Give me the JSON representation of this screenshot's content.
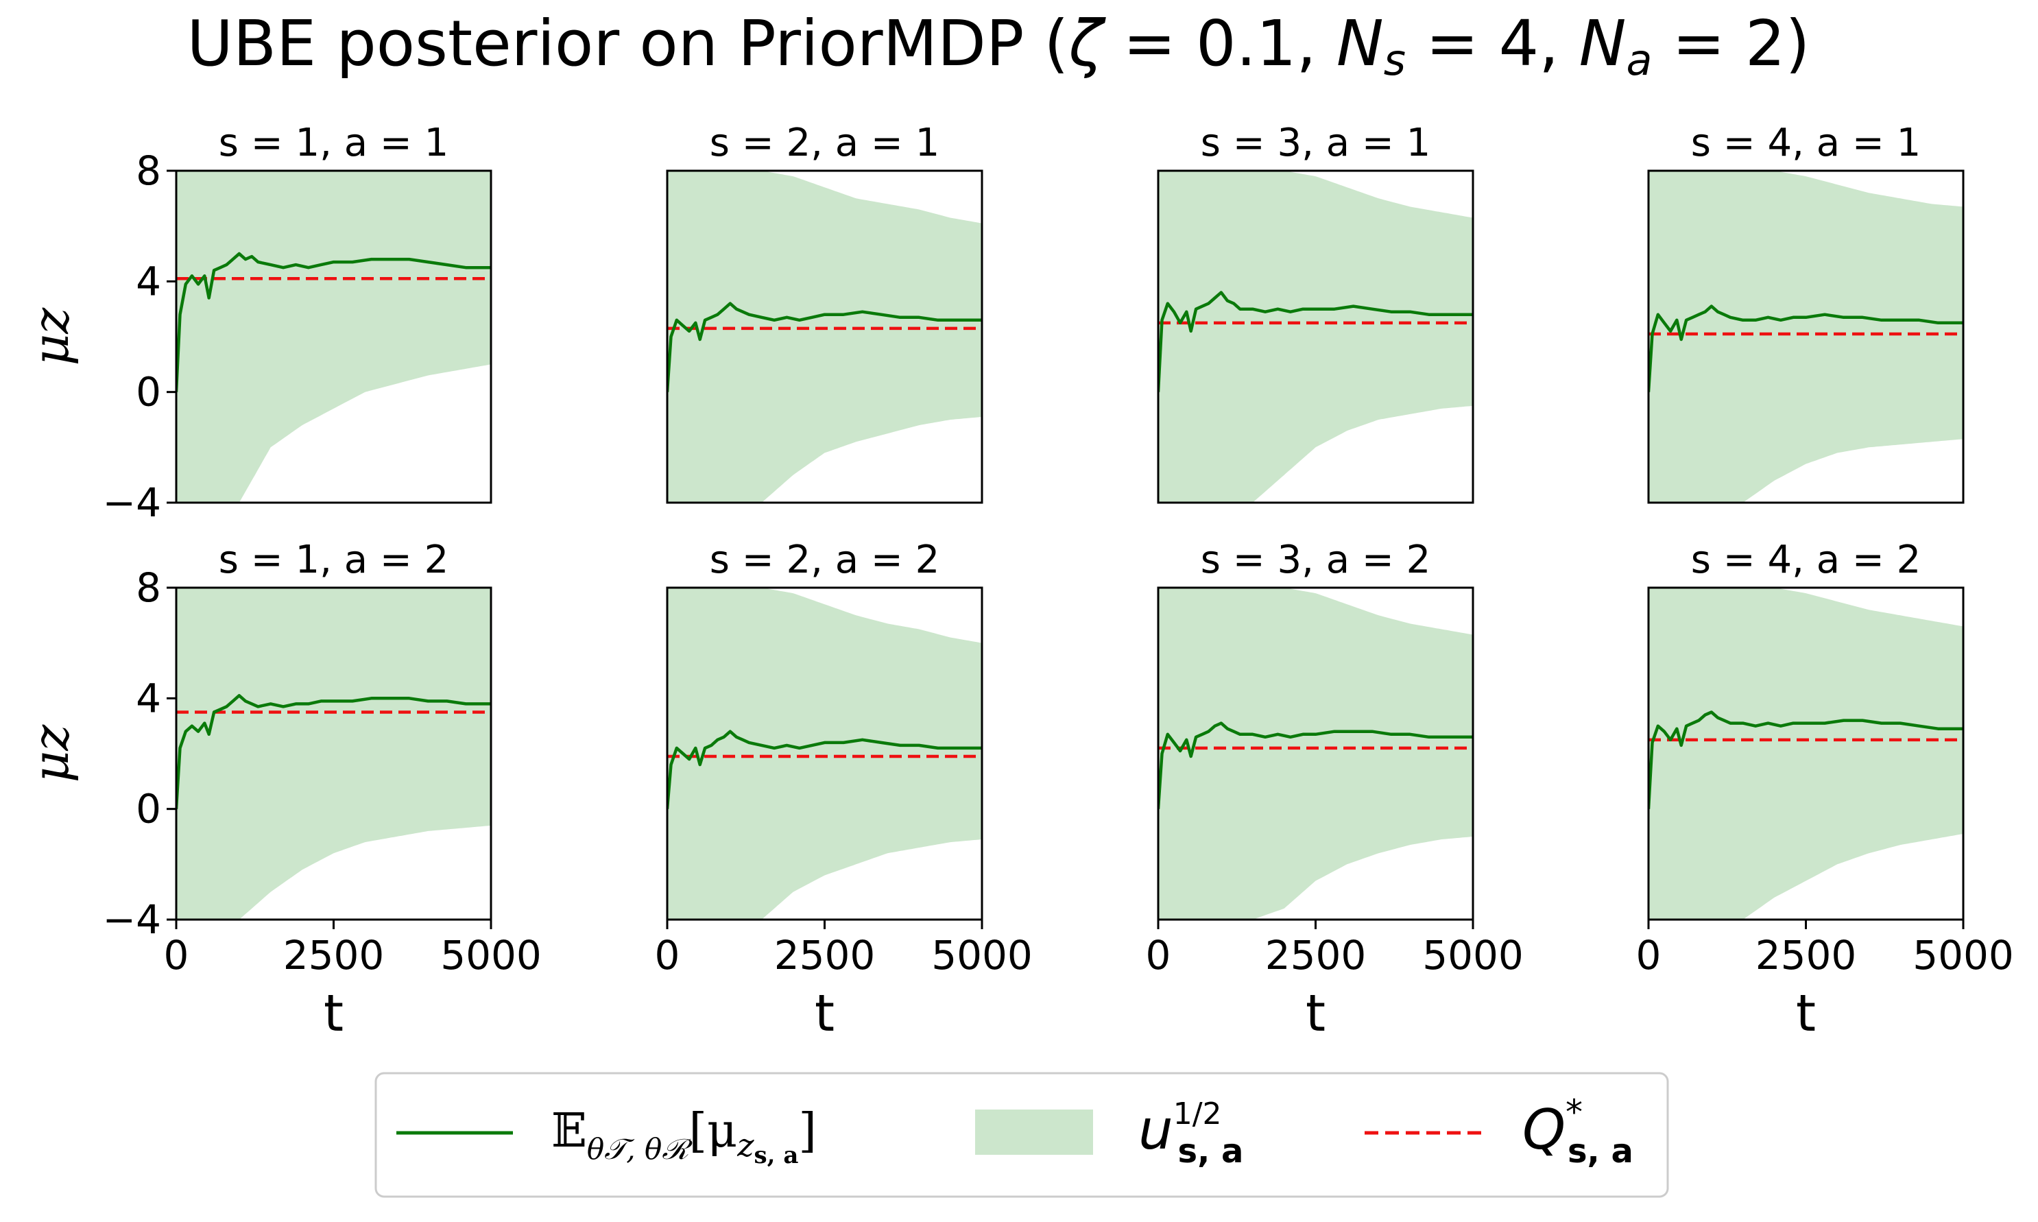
{
  "figure": {
    "title_prefix": "UBE posterior on PriorMDP (",
    "zeta_symbol": "ζ",
    "zeta_text": " = 0.1, ",
    "ns_symbol": "N",
    "ns_sub": "s",
    "ns_text": " = 4, ",
    "na_symbol": "N",
    "na_sub": "a",
    "na_text": " = 2)",
    "title_suffix": ""
  },
  "legend": {
    "mean_label_E": "𝔼",
    "mean_label_sub": "θ𝒯, θℛ",
    "mean_label_rest": "[μ",
    "mean_label_z": "z",
    "mean_label_zsub": "s, a",
    "mean_label_close": "]",
    "band_label_u": "u",
    "band_label_sup": "1/2",
    "band_label_sub": "s, a",
    "ref_label_Q": "Q",
    "ref_label_sup": "*",
    "ref_label_sub": "s, a"
  },
  "colors": {
    "mean": "#0a7a0a",
    "band": "#cce6cc",
    "ref": "#ee1111"
  },
  "chart_data": [
    {
      "type": "line",
      "title": "s = 1, a = 1",
      "ylabel": "μz",
      "xlabel": "",
      "xlim": [
        0,
        5000
      ],
      "ylim": [
        -4,
        8
      ],
      "yticks": [
        "8",
        "4",
        "0",
        "−4"
      ],
      "xticks": [],
      "q_star": 4.1,
      "mean_x": [
        0,
        60,
        150,
        250,
        350,
        450,
        520,
        600,
        700,
        800,
        900,
        1000,
        1100,
        1200,
        1300,
        1500,
        1700,
        1900,
        2100,
        2300,
        2500,
        2800,
        3100,
        3400,
        3700,
        4000,
        4300,
        4600,
        5000
      ],
      "mean_y": [
        0,
        2.8,
        3.9,
        4.2,
        3.9,
        4.2,
        3.4,
        4.4,
        4.5,
        4.6,
        4.8,
        5.0,
        4.8,
        4.9,
        4.7,
        4.6,
        4.5,
        4.6,
        4.5,
        4.6,
        4.7,
        4.7,
        4.8,
        4.8,
        4.8,
        4.7,
        4.6,
        4.5,
        4.5
      ],
      "band_upper": [
        8,
        8,
        8,
        8,
        8,
        8,
        8
      ],
      "band_lower_x": [
        0,
        600,
        1000,
        1500,
        2000,
        2500,
        3000,
        3500,
        4000,
        4500,
        5000
      ],
      "band_lower": [
        -4,
        -4,
        -4,
        -2.0,
        -1.2,
        -0.6,
        0.0,
        0.3,
        0.6,
        0.8,
        1.0
      ]
    },
    {
      "type": "line",
      "title": "s = 2, a = 1",
      "ylabel": "",
      "xlabel": "",
      "xlim": [
        0,
        5000
      ],
      "ylim": [
        -4,
        8
      ],
      "yticks": [],
      "xticks": [],
      "q_star": 2.3,
      "mean_x": [
        0,
        60,
        150,
        250,
        350,
        450,
        520,
        600,
        700,
        800,
        900,
        1000,
        1100,
        1200,
        1300,
        1500,
        1700,
        1900,
        2100,
        2300,
        2500,
        2800,
        3100,
        3400,
        3700,
        4000,
        4300,
        4600,
        5000
      ],
      "mean_y": [
        0,
        2.0,
        2.6,
        2.4,
        2.2,
        2.5,
        1.9,
        2.6,
        2.7,
        2.8,
        3.0,
        3.2,
        3.0,
        2.9,
        2.8,
        2.7,
        2.6,
        2.7,
        2.6,
        2.7,
        2.8,
        2.8,
        2.9,
        2.8,
        2.7,
        2.7,
        2.6,
        2.6,
        2.6
      ],
      "band_upper_x": [
        0,
        1000,
        1500,
        2000,
        2500,
        3000,
        3500,
        4000,
        4500,
        5000
      ],
      "band_upper": [
        8,
        8,
        8,
        7.8,
        7.4,
        7.0,
        6.8,
        6.6,
        6.3,
        6.1
      ],
      "band_lower_x": [
        0,
        1000,
        1500,
        2000,
        2500,
        3000,
        3500,
        4000,
        4500,
        5000
      ],
      "band_lower": [
        -4,
        -4,
        -4,
        -3.0,
        -2.2,
        -1.8,
        -1.5,
        -1.2,
        -1.0,
        -0.9
      ]
    },
    {
      "type": "line",
      "title": "s = 3, a = 1",
      "ylabel": "",
      "xlabel": "",
      "xlim": [
        0,
        5000
      ],
      "ylim": [
        -4,
        8
      ],
      "yticks": [],
      "xticks": [],
      "q_star": 2.5,
      "mean_x": [
        0,
        60,
        150,
        250,
        350,
        450,
        520,
        600,
        700,
        800,
        900,
        1000,
        1100,
        1200,
        1300,
        1500,
        1700,
        1900,
        2100,
        2300,
        2500,
        2800,
        3100,
        3400,
        3700,
        4000,
        4300,
        4600,
        5000
      ],
      "mean_y": [
        0,
        2.6,
        3.2,
        2.9,
        2.5,
        2.9,
        2.2,
        3.0,
        3.1,
        3.2,
        3.4,
        3.6,
        3.3,
        3.2,
        3.0,
        3.0,
        2.9,
        3.0,
        2.9,
        3.0,
        3.0,
        3.0,
        3.1,
        3.0,
        2.9,
        2.9,
        2.8,
        2.8,
        2.8
      ],
      "band_upper_x": [
        0,
        1000,
        1500,
        2000,
        2500,
        3000,
        3500,
        4000,
        4500,
        5000
      ],
      "band_upper": [
        8,
        8,
        8,
        8,
        7.8,
        7.4,
        7.0,
        6.7,
        6.5,
        6.3
      ],
      "band_lower_x": [
        0,
        1000,
        1500,
        2000,
        2500,
        3000,
        3500,
        4000,
        4500,
        5000
      ],
      "band_lower": [
        -4,
        -4,
        -4,
        -3.0,
        -2.0,
        -1.4,
        -1.0,
        -0.8,
        -0.6,
        -0.5
      ]
    },
    {
      "type": "line",
      "title": "s = 4, a = 1",
      "ylabel": "",
      "xlabel": "",
      "xlim": [
        0,
        5000
      ],
      "ylim": [
        -4,
        8
      ],
      "yticks": [],
      "xticks": [],
      "q_star": 2.1,
      "mean_x": [
        0,
        60,
        150,
        250,
        350,
        450,
        520,
        600,
        700,
        800,
        900,
        1000,
        1100,
        1200,
        1300,
        1500,
        1700,
        1900,
        2100,
        2300,
        2500,
        2800,
        3100,
        3400,
        3700,
        4000,
        4300,
        4600,
        5000
      ],
      "mean_y": [
        0,
        2.1,
        2.8,
        2.5,
        2.2,
        2.6,
        1.9,
        2.6,
        2.7,
        2.8,
        2.9,
        3.1,
        2.9,
        2.8,
        2.7,
        2.6,
        2.6,
        2.7,
        2.6,
        2.7,
        2.7,
        2.8,
        2.7,
        2.7,
        2.6,
        2.6,
        2.6,
        2.5,
        2.5
      ],
      "band_upper_x": [
        0,
        1000,
        1500,
        2000,
        2500,
        3000,
        3500,
        4000,
        4500,
        5000
      ],
      "band_upper": [
        8,
        8,
        8,
        8,
        7.8,
        7.5,
        7.2,
        7.0,
        6.8,
        6.7
      ],
      "band_lower_x": [
        0,
        1000,
        1500,
        2000,
        2500,
        3000,
        3500,
        4000,
        4500,
        5000
      ],
      "band_lower": [
        -4,
        -4,
        -4,
        -3.2,
        -2.6,
        -2.2,
        -2.0,
        -1.9,
        -1.8,
        -1.7
      ]
    },
    {
      "type": "line",
      "title": "s = 1, a = 2",
      "ylabel": "μz",
      "xlabel": "t",
      "xlim": [
        0,
        5000
      ],
      "ylim": [
        -4,
        8
      ],
      "yticks": [
        "8",
        "4",
        "0",
        "−4"
      ],
      "xticks": [
        "0",
        "2500",
        "5000"
      ],
      "q_star": 3.5,
      "mean_x": [
        0,
        60,
        150,
        250,
        350,
        450,
        520,
        600,
        700,
        800,
        900,
        1000,
        1100,
        1200,
        1300,
        1500,
        1700,
        1900,
        2100,
        2300,
        2500,
        2800,
        3100,
        3400,
        3700,
        4000,
        4300,
        4600,
        5000
      ],
      "mean_y": [
        0,
        2.2,
        2.8,
        3.0,
        2.8,
        3.1,
        2.7,
        3.5,
        3.6,
        3.7,
        3.9,
        4.1,
        3.9,
        3.8,
        3.7,
        3.8,
        3.7,
        3.8,
        3.8,
        3.9,
        3.9,
        3.9,
        4.0,
        4.0,
        4.0,
        3.9,
        3.9,
        3.8,
        3.8
      ],
      "band_upper": [
        8,
        8,
        8,
        8,
        8,
        8,
        8
      ],
      "band_lower_x": [
        0,
        600,
        1000,
        1500,
        2000,
        2500,
        3000,
        3500,
        4000,
        4500,
        5000
      ],
      "band_lower": [
        -4,
        -4,
        -4,
        -3.0,
        -2.2,
        -1.6,
        -1.2,
        -1.0,
        -0.8,
        -0.7,
        -0.6
      ]
    },
    {
      "type": "line",
      "title": "s = 2, a = 2",
      "ylabel": "",
      "xlabel": "t",
      "xlim": [
        0,
        5000
      ],
      "ylim": [
        -4,
        8
      ],
      "yticks": [],
      "xticks": [
        "0",
        "2500",
        "5000"
      ],
      "q_star": 1.9,
      "mean_x": [
        0,
        60,
        150,
        250,
        350,
        450,
        520,
        600,
        700,
        800,
        900,
        1000,
        1100,
        1200,
        1300,
        1500,
        1700,
        1900,
        2100,
        2300,
        2500,
        2800,
        3100,
        3400,
        3700,
        4000,
        4300,
        4600,
        5000
      ],
      "mean_y": [
        0,
        1.6,
        2.2,
        2.0,
        1.8,
        2.2,
        1.6,
        2.2,
        2.3,
        2.5,
        2.6,
        2.8,
        2.6,
        2.5,
        2.4,
        2.3,
        2.2,
        2.3,
        2.2,
        2.3,
        2.4,
        2.4,
        2.5,
        2.4,
        2.3,
        2.3,
        2.2,
        2.2,
        2.2
      ],
      "band_upper_x": [
        0,
        1000,
        1500,
        2000,
        2500,
        3000,
        3500,
        4000,
        4500,
        5000
      ],
      "band_upper": [
        8,
        8,
        8,
        7.8,
        7.4,
        7.0,
        6.7,
        6.5,
        6.2,
        6.0
      ],
      "band_lower_x": [
        0,
        1000,
        1500,
        2000,
        2500,
        3000,
        3500,
        4000,
        4500,
        5000
      ],
      "band_lower": [
        -4,
        -4,
        -4,
        -3.0,
        -2.4,
        -2.0,
        -1.6,
        -1.4,
        -1.2,
        -1.1
      ]
    },
    {
      "type": "line",
      "title": "s = 3, a = 2",
      "ylabel": "",
      "xlabel": "t",
      "xlim": [
        0,
        5000
      ],
      "ylim": [
        -4,
        8
      ],
      "yticks": [],
      "xticks": [
        "0",
        "2500",
        "5000"
      ],
      "q_star": 2.2,
      "mean_x": [
        0,
        60,
        150,
        250,
        350,
        450,
        520,
        600,
        700,
        800,
        900,
        1000,
        1100,
        1200,
        1300,
        1500,
        1700,
        1900,
        2100,
        2300,
        2500,
        2800,
        3100,
        3400,
        3700,
        4000,
        4300,
        4600,
        5000
      ],
      "mean_y": [
        0,
        2.0,
        2.7,
        2.4,
        2.1,
        2.5,
        1.9,
        2.6,
        2.7,
        2.8,
        3.0,
        3.1,
        2.9,
        2.8,
        2.7,
        2.7,
        2.6,
        2.7,
        2.6,
        2.7,
        2.7,
        2.8,
        2.8,
        2.8,
        2.7,
        2.7,
        2.6,
        2.6,
        2.6
      ],
      "band_upper_x": [
        0,
        1000,
        1500,
        2000,
        2500,
        3000,
        3500,
        4000,
        4500,
        5000
      ],
      "band_upper": [
        8,
        8,
        8,
        8,
        7.8,
        7.4,
        7.0,
        6.7,
        6.5,
        6.3
      ],
      "band_lower_x": [
        0,
        1000,
        1500,
        2000,
        2500,
        3000,
        3500,
        4000,
        4500,
        5000
      ],
      "band_lower": [
        -4,
        -4,
        -4,
        -3.6,
        -2.6,
        -2.0,
        -1.6,
        -1.3,
        -1.1,
        -1.0
      ]
    },
    {
      "type": "line",
      "title": "s = 4, a = 2",
      "ylabel": "",
      "xlabel": "t",
      "xlim": [
        0,
        5000
      ],
      "ylim": [
        -4,
        8
      ],
      "yticks": [],
      "xticks": [
        "0",
        "2500",
        "5000"
      ],
      "q_star": 2.5,
      "mean_x": [
        0,
        60,
        150,
        250,
        350,
        450,
        520,
        600,
        700,
        800,
        900,
        1000,
        1100,
        1200,
        1300,
        1500,
        1700,
        1900,
        2100,
        2300,
        2500,
        2800,
        3100,
        3400,
        3700,
        4000,
        4300,
        4600,
        5000
      ],
      "mean_y": [
        0,
        2.4,
        3.0,
        2.8,
        2.5,
        2.9,
        2.3,
        3.0,
        3.1,
        3.2,
        3.4,
        3.5,
        3.3,
        3.2,
        3.1,
        3.1,
        3.0,
        3.1,
        3.0,
        3.1,
        3.1,
        3.1,
        3.2,
        3.2,
        3.1,
        3.1,
        3.0,
        2.9,
        2.9
      ],
      "band_upper_x": [
        0,
        1000,
        1500,
        2000,
        2500,
        3000,
        3500,
        4000,
        4500,
        5000
      ],
      "band_upper": [
        8,
        8,
        8,
        8,
        7.8,
        7.5,
        7.2,
        7.0,
        6.8,
        6.6
      ],
      "band_lower_x": [
        0,
        1000,
        1500,
        2000,
        2500,
        3000,
        3500,
        4000,
        4500,
        5000
      ],
      "band_lower": [
        -4,
        -4,
        -4,
        -3.2,
        -2.6,
        -2.0,
        -1.6,
        -1.3,
        -1.1,
        -0.9
      ]
    }
  ]
}
